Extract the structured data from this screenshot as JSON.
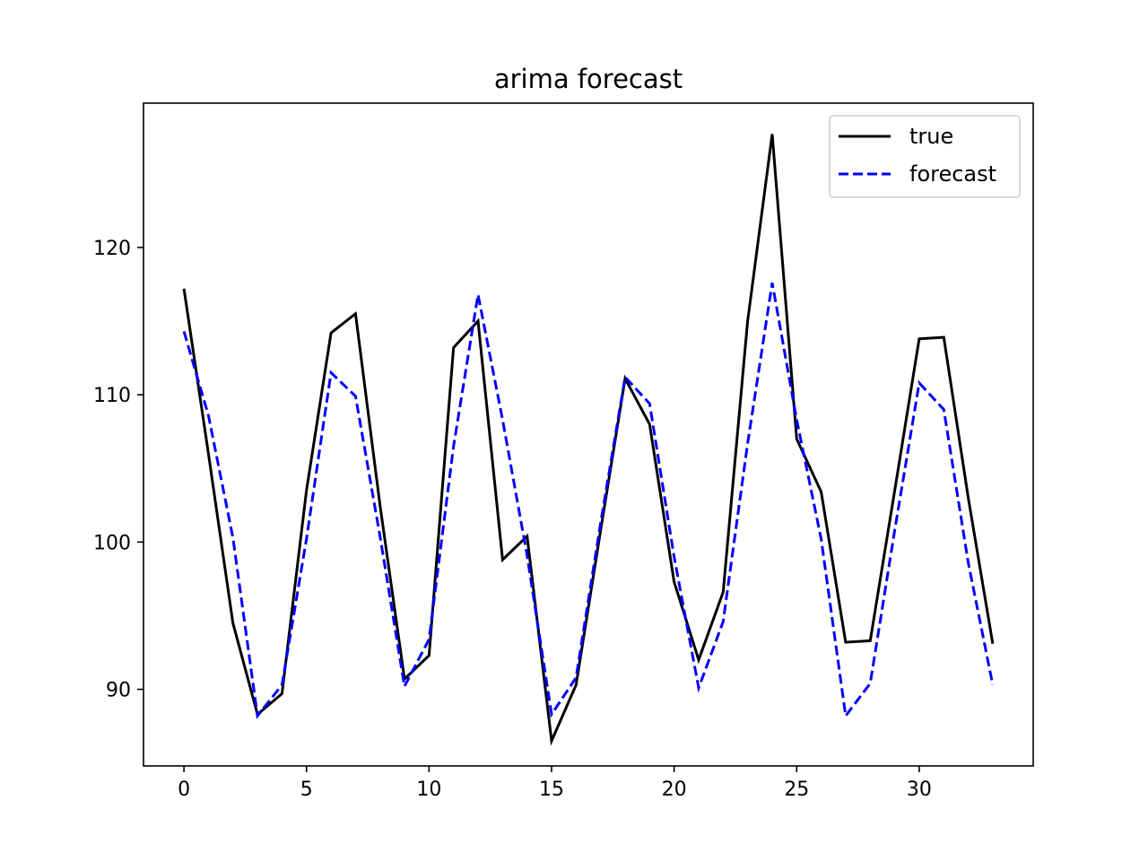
{
  "chart_data": {
    "type": "line",
    "title": "arima forecast",
    "xlabel": "",
    "ylabel": "",
    "xlim": [
      -1.65,
      34.65
    ],
    "ylim": [
      84.8,
      129.8
    ],
    "x_ticks": [
      0,
      5,
      10,
      15,
      20,
      25,
      30
    ],
    "y_ticks": [
      90,
      100,
      110,
      120
    ],
    "grid": false,
    "legend_position": "top-right",
    "x": [
      0,
      1,
      2,
      3,
      4,
      5,
      6,
      7,
      8,
      9,
      10,
      11,
      12,
      13,
      14,
      15,
      16,
      17,
      18,
      19,
      20,
      21,
      22,
      23,
      24,
      25,
      26,
      27,
      28,
      29,
      30,
      31,
      32,
      33
    ],
    "series": [
      {
        "name": "true",
        "color": "#000000",
        "style": "solid",
        "values": [
          117.2,
          106.0,
          94.5,
          88.3,
          89.7,
          103.5,
          114.2,
          115.5,
          102.5,
          90.7,
          92.3,
          113.2,
          115.0,
          98.8,
          100.4,
          86.5,
          90.3,
          100.8,
          111.1,
          108.0,
          97.3,
          92.0,
          96.6,
          115.0,
          127.7,
          107.0,
          103.4,
          93.2,
          93.3,
          103.5,
          113.8,
          113.9,
          103.0,
          93.1
        ]
      },
      {
        "name": "forecast",
        "color": "#0000ff",
        "style": "dashed",
        "values": [
          114.3,
          108.6,
          100.3,
          88.2,
          90.3,
          100.2,
          111.5,
          109.9,
          100.4,
          90.2,
          93.4,
          106.5,
          116.8,
          108.3,
          99.1,
          88.3,
          90.8,
          101.3,
          111.2,
          109.4,
          99.0,
          90.1,
          94.6,
          106.7,
          117.6,
          108.3,
          100.2,
          88.2,
          90.4,
          100.8,
          110.8,
          109.0,
          98.6,
          90.3
        ]
      }
    ]
  }
}
